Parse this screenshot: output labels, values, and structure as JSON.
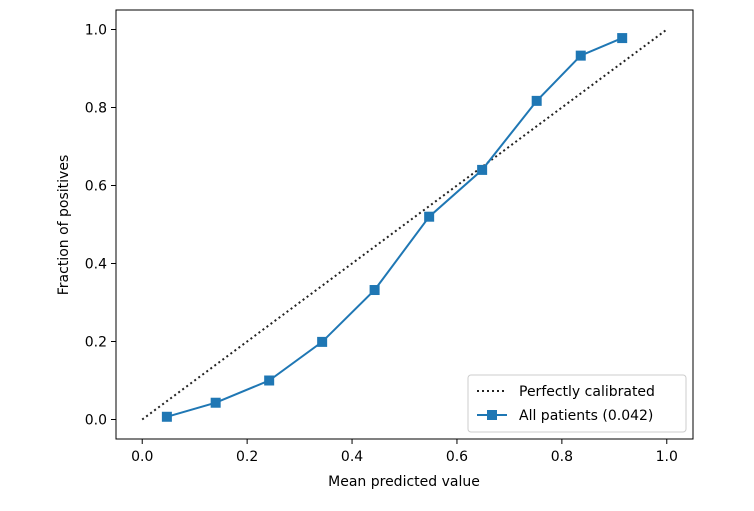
{
  "chart_data": {
    "type": "line",
    "title": "",
    "xlabel": "Mean predicted value",
    "ylabel": "Fraction of positives",
    "xlim": [
      -0.05,
      1.05
    ],
    "ylim": [
      -0.05,
      1.05
    ],
    "grid": false,
    "legend_position": "bottom-right",
    "xticks": [
      {
        "value": 0.0,
        "label": "0.0"
      },
      {
        "value": 0.2,
        "label": "0.2"
      },
      {
        "value": 0.4,
        "label": "0.4"
      },
      {
        "value": 0.6,
        "label": "0.6"
      },
      {
        "value": 0.8,
        "label": "0.8"
      },
      {
        "value": 1.0,
        "label": "1.0"
      }
    ],
    "yticks": [
      {
        "value": 0.0,
        "label": "0.0"
      },
      {
        "value": 0.2,
        "label": "0.2"
      },
      {
        "value": 0.4,
        "label": "0.4"
      },
      {
        "value": 0.6,
        "label": "0.6"
      },
      {
        "value": 0.8,
        "label": "0.8"
      },
      {
        "value": 1.0,
        "label": "1.0"
      }
    ],
    "series": [
      {
        "name": "Perfectly calibrated",
        "style": "dotted",
        "color": "#222222",
        "marker": "none",
        "x": [
          0.0,
          1.0
        ],
        "y": [
          0.0,
          1.0
        ]
      },
      {
        "name": "All patients (0.042)",
        "style": "solid",
        "color": "#1f77b4",
        "marker": "square",
        "x": [
          0.047,
          0.14,
          0.242,
          0.343,
          0.443,
          0.547,
          0.648,
          0.752,
          0.836,
          0.915
        ],
        "y": [
          0.007,
          0.043,
          0.1,
          0.199,
          0.332,
          0.52,
          0.64,
          0.817,
          0.933,
          0.978
        ]
      }
    ]
  }
}
